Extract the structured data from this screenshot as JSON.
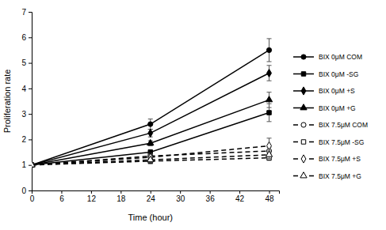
{
  "chart_data": {
    "type": "line",
    "x_label": "Time (hour)",
    "y_label": "Proliferation rate",
    "x": [
      0,
      24,
      48
    ],
    "xlim": [
      0,
      50
    ],
    "xticks": [
      0,
      6,
      12,
      18,
      24,
      30,
      36,
      42,
      48
    ],
    "ylim": [
      0,
      7
    ],
    "yticks": [
      0,
      1,
      2,
      3,
      4,
      5,
      6,
      7
    ],
    "grid": false,
    "legend": "right",
    "series": [
      {
        "name": "BIX 0μM COM",
        "color": "#000000",
        "marker": "circle",
        "line_style": "solid",
        "values": [
          1,
          2.6,
          5.5
        ],
        "errors": [
          0.05,
          0.2,
          0.45
        ]
      },
      {
        "name": "BIX 0μM -SG",
        "color": "#000000",
        "marker": "square",
        "line_style": "solid",
        "values": [
          1,
          1.5,
          3.05
        ],
        "errors": [
          0.05,
          0.1,
          0.35
        ]
      },
      {
        "name": "BIX 0μM +S",
        "color": "#000000",
        "marker": "diamond",
        "line_style": "solid",
        "values": [
          1,
          2.25,
          4.6
        ],
        "errors": [
          0.05,
          0.15,
          0.3
        ]
      },
      {
        "name": "BIX 0μM +G",
        "color": "#000000",
        "marker": "triangle",
        "line_style": "solid",
        "values": [
          1,
          1.85,
          3.55
        ],
        "errors": [
          0.05,
          0.1,
          0.3
        ]
      },
      {
        "name": "BIX 7.5μM COM",
        "color": "#000000",
        "marker": "open-circle",
        "line_style": "dashed",
        "values": [
          1,
          1.35,
          1.55
        ],
        "errors": [
          0.05,
          0.1,
          0.15
        ]
      },
      {
        "name": "BIX 7.5μM -SG",
        "color": "#000000",
        "marker": "open-square",
        "line_style": "dashed",
        "values": [
          1,
          1.15,
          1.28
        ],
        "errors": [
          0.05,
          0.1,
          0.1
        ]
      },
      {
        "name": "BIX 7.5μM +S",
        "color": "#000000",
        "marker": "open-diamond",
        "line_style": "dashed",
        "values": [
          1,
          1.3,
          1.75
        ],
        "errors": [
          0.05,
          0.1,
          0.3
        ]
      },
      {
        "name": "BIX 7.5μM +G",
        "color": "#000000",
        "marker": "open-triangle",
        "line_style": "dashed",
        "values": [
          1,
          1.2,
          1.4
        ],
        "errors": [
          0.05,
          0.1,
          0.15
        ]
      }
    ]
  }
}
